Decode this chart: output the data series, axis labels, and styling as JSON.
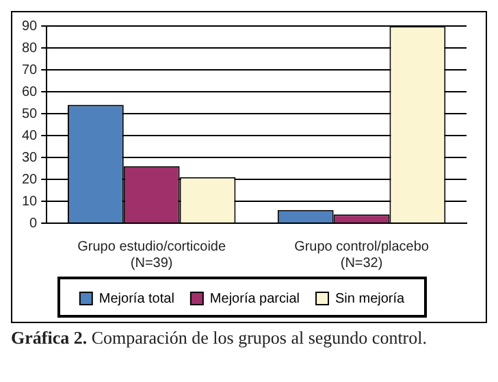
{
  "chart_data": {
    "type": "bar",
    "categories": [
      "Grupo estudio/corticoide (N=39)",
      "Grupo control/placebo (N=32)"
    ],
    "series": [
      {
        "name": "Mejoría total",
        "color": "#4f81bd",
        "values": [
          54,
          6
        ]
      },
      {
        "name": "Mejoría parcial",
        "color": "#a0306a",
        "values": [
          26,
          4
        ]
      },
      {
        "name": "Sin mejoría",
        "color": "#fbf5d2",
        "values": [
          21,
          90
        ]
      }
    ],
    "ylim": [
      0,
      90
    ],
    "yticks": [
      0,
      10,
      20,
      30,
      40,
      50,
      60,
      70,
      80,
      90
    ],
    "grid": "y",
    "legend": "bottom",
    "annotations": [
      "Gráfica 2. Comparación de los grupos al segundo control."
    ]
  }
}
